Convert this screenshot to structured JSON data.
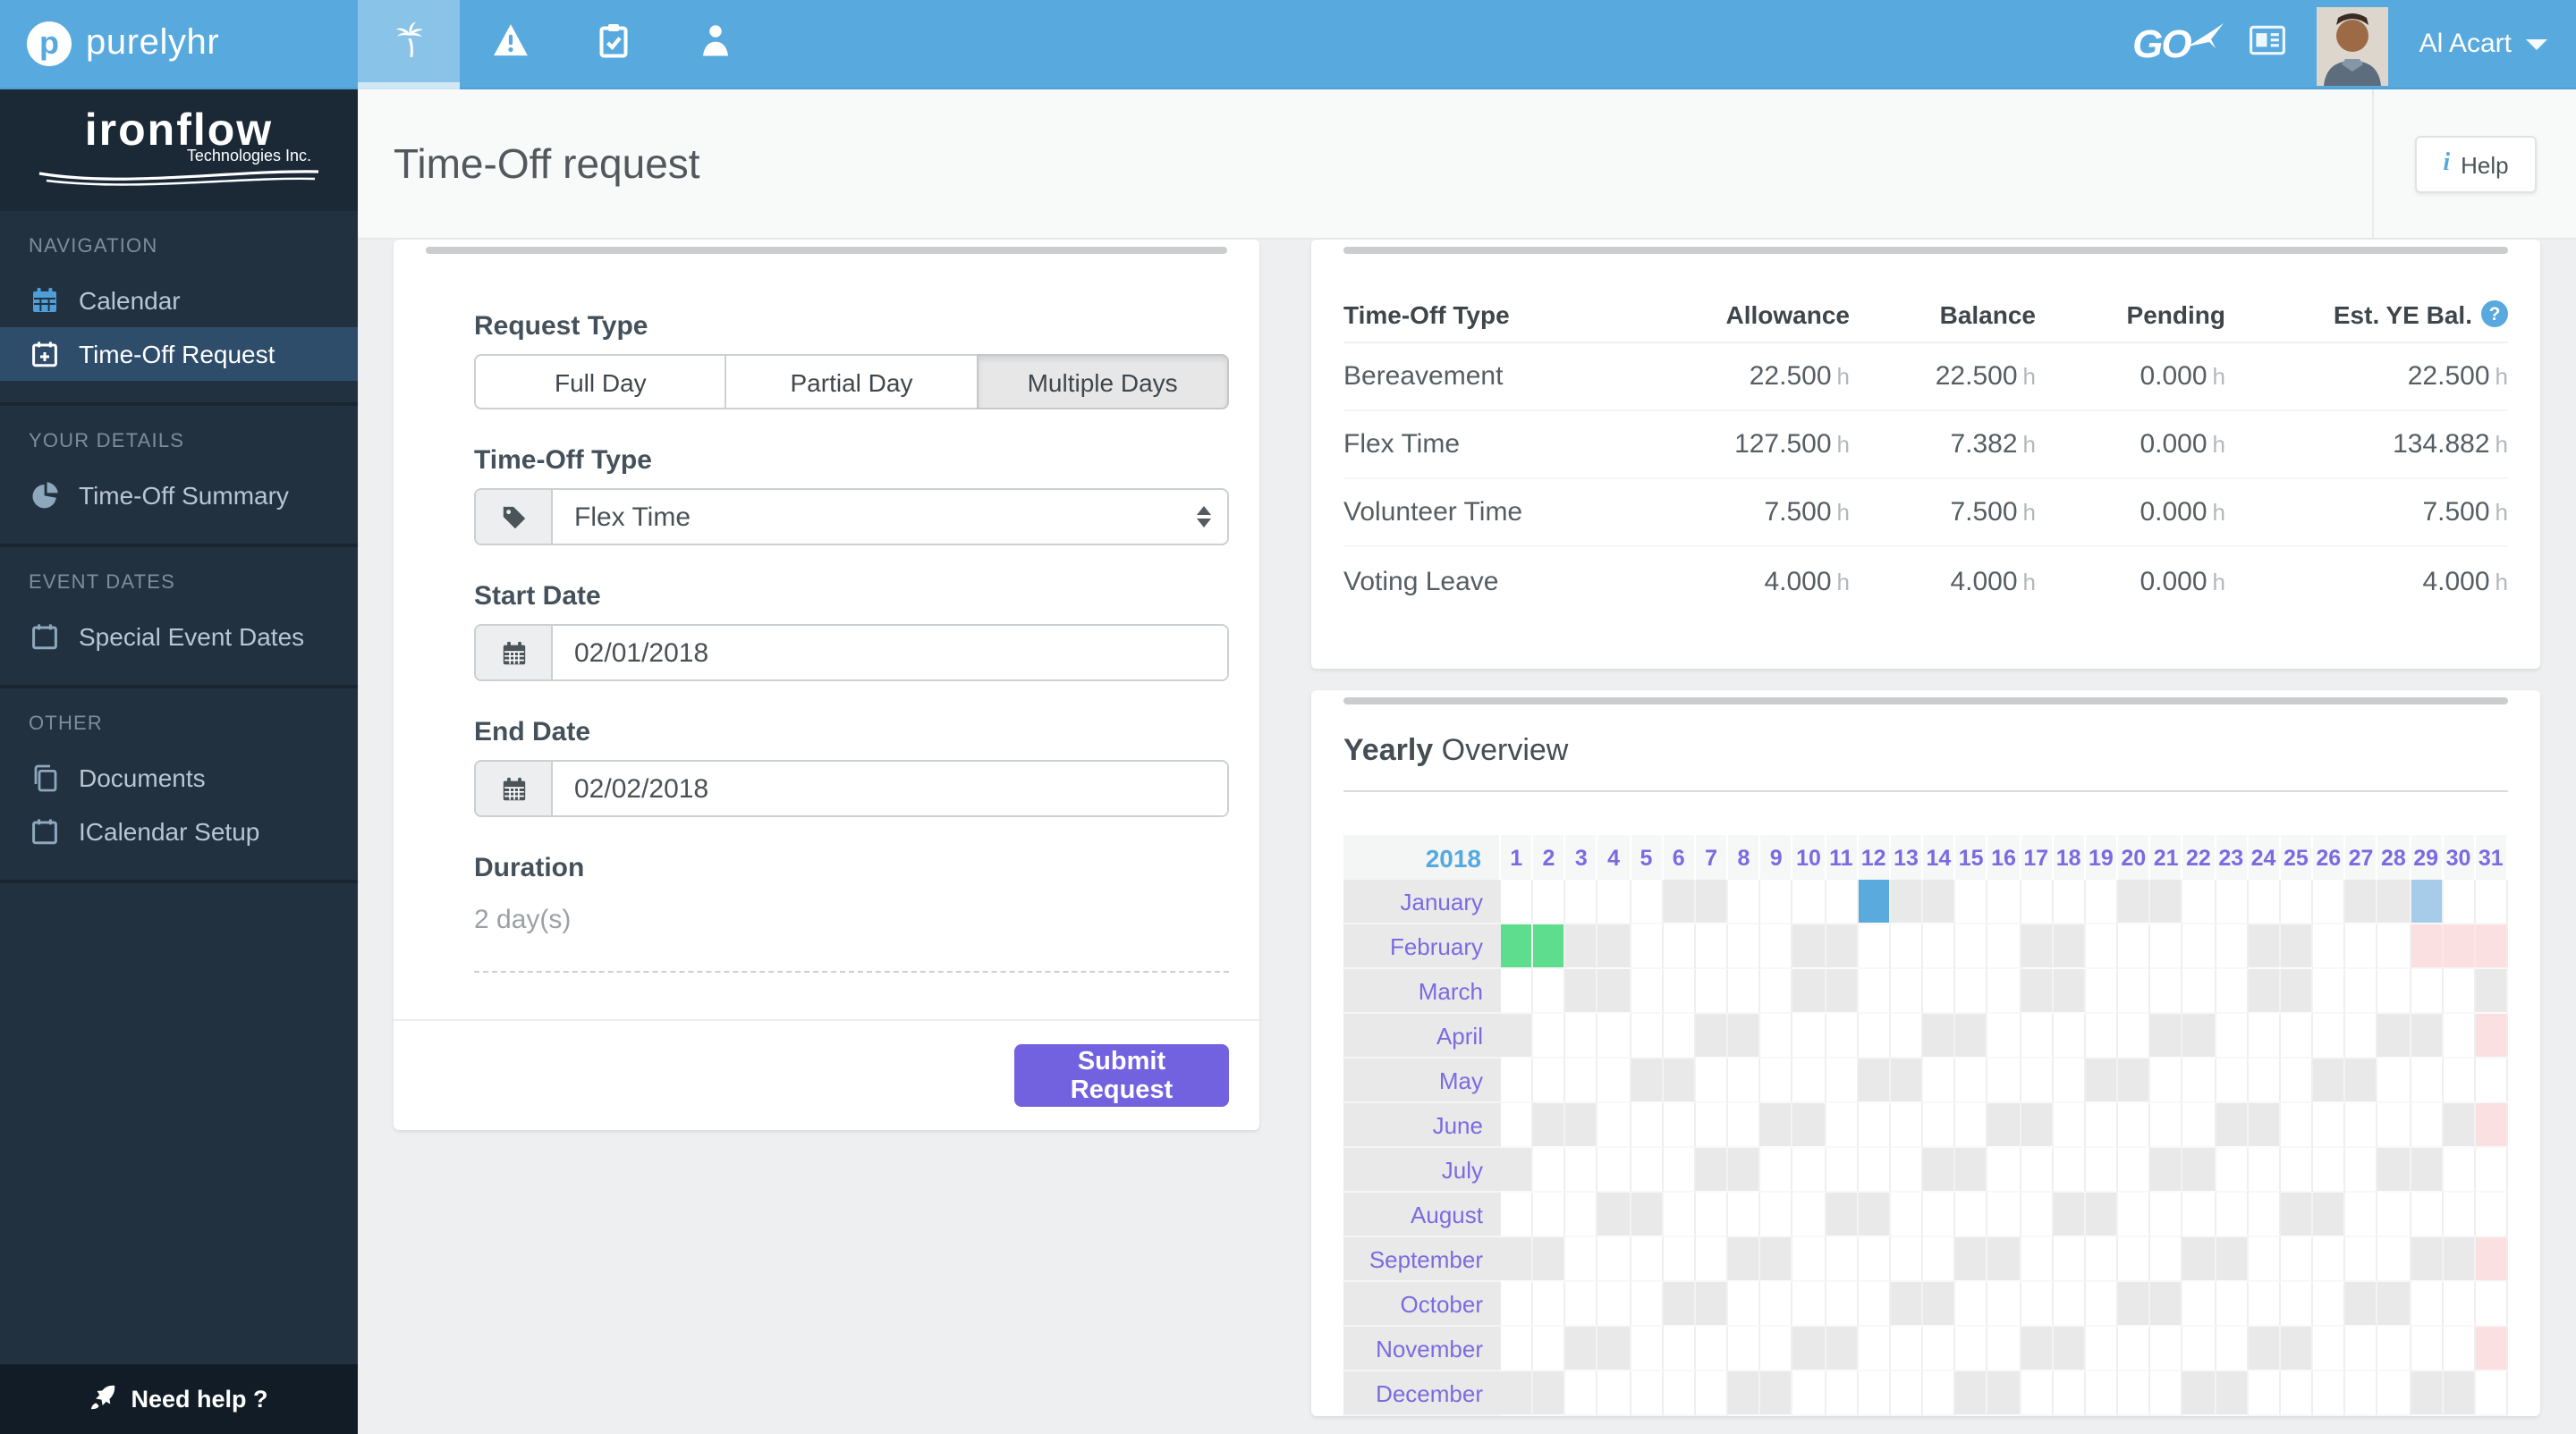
{
  "topbar": {
    "brand": "purelyhr",
    "go_label": "GO",
    "user_name": "Al Acart"
  },
  "sidebar": {
    "company_name": "ironflow",
    "company_subtitle": "Technologies Inc.",
    "sections": [
      {
        "title": "NAVIGATION",
        "items": [
          {
            "label": "Calendar"
          },
          {
            "label": "Time-Off Request"
          }
        ]
      },
      {
        "title": "YOUR DETAILS",
        "items": [
          {
            "label": "Time-Off Summary"
          }
        ]
      },
      {
        "title": "EVENT DATES",
        "items": [
          {
            "label": "Special Event Dates"
          }
        ]
      },
      {
        "title": "OTHER",
        "items": [
          {
            "label": "Documents"
          },
          {
            "label": "ICalendar Setup"
          }
        ]
      }
    ],
    "need_help": "Need help ?"
  },
  "header": {
    "title": "Time-Off request",
    "help_label": "Help"
  },
  "form": {
    "request_type_label": "Request Type",
    "request_types": [
      "Full Day",
      "Partial Day",
      "Multiple Days"
    ],
    "request_type_selected": "Multiple Days",
    "time_off_type_label": "Time-Off Type",
    "time_off_type_value": "Flex Time",
    "start_date_label": "Start Date",
    "start_date_value": "02/01/2018",
    "end_date_label": "End Date",
    "end_date_value": "02/02/2018",
    "duration_label": "Duration",
    "duration_value": "2 day(s)",
    "submit_label": "Submit Request"
  },
  "balances": {
    "columns": [
      "Time-Off Type",
      "Allowance",
      "Balance",
      "Pending",
      "Est. YE Bal."
    ],
    "unit": "h",
    "rows": [
      {
        "type": "Bereavement",
        "allowance": "22.500",
        "balance": "22.500",
        "pending": "0.000",
        "est_ye": "22.500"
      },
      {
        "type": "Flex Time",
        "allowance": "127.500",
        "balance": "7.382",
        "pending": "0.000",
        "est_ye": "134.882"
      },
      {
        "type": "Volunteer Time",
        "allowance": "7.500",
        "balance": "7.500",
        "pending": "0.000",
        "est_ye": "7.500"
      },
      {
        "type": "Voting Leave",
        "allowance": "4.000",
        "balance": "4.000",
        "pending": "0.000",
        "est_ye": "4.000"
      }
    ]
  },
  "yearly_overview": {
    "title_bold": "Yearly",
    "title_rest": " Overview",
    "year": "2018",
    "day_count": 31,
    "cell_colors": {
      "weekend": "#e9e9e9",
      "invalid": "#fbe0e1",
      "blue": "#5aaade",
      "lightblue": "#a7cce9",
      "green": "#5fdd8e"
    },
    "months": [
      {
        "name": "January",
        "weekends": [
          6,
          7,
          13,
          14,
          20,
          21,
          27,
          28
        ],
        "invalid": [],
        "marked": {
          "12": "blue",
          "29": "lightblue"
        }
      },
      {
        "name": "February",
        "weekends": [
          3,
          4,
          10,
          11,
          17,
          18,
          24,
          25
        ],
        "invalid": [
          29,
          30,
          31
        ],
        "marked": {
          "1": "green",
          "2": "green"
        }
      },
      {
        "name": "March",
        "weekends": [
          3,
          4,
          10,
          11,
          17,
          18,
          24,
          25,
          31
        ],
        "invalid": [],
        "marked": {}
      },
      {
        "name": "April",
        "weekends": [
          1,
          7,
          8,
          14,
          15,
          21,
          22,
          28,
          29
        ],
        "invalid": [
          31
        ],
        "marked": {}
      },
      {
        "name": "May",
        "weekends": [
          5,
          6,
          12,
          13,
          19,
          20,
          26,
          27
        ],
        "invalid": [],
        "marked": {}
      },
      {
        "name": "June",
        "weekends": [
          2,
          3,
          9,
          10,
          16,
          17,
          23,
          24,
          30
        ],
        "invalid": [
          31
        ],
        "marked": {}
      },
      {
        "name": "July",
        "weekends": [
          1,
          7,
          8,
          14,
          15,
          21,
          22,
          28,
          29
        ],
        "invalid": [],
        "marked": {}
      },
      {
        "name": "August",
        "weekends": [
          4,
          5,
          11,
          12,
          18,
          19,
          25,
          26
        ],
        "invalid": [],
        "marked": {}
      },
      {
        "name": "September",
        "weekends": [
          1,
          2,
          8,
          9,
          15,
          16,
          22,
          23,
          29,
          30
        ],
        "invalid": [
          31
        ],
        "marked": {}
      },
      {
        "name": "October",
        "weekends": [
          6,
          7,
          13,
          14,
          20,
          21,
          27,
          28
        ],
        "invalid": [],
        "marked": {}
      },
      {
        "name": "November",
        "weekends": [
          3,
          4,
          10,
          11,
          17,
          18,
          24,
          25
        ],
        "invalid": [
          31
        ],
        "marked": {}
      },
      {
        "name": "December",
        "weekends": [
          1,
          2,
          8,
          9,
          15,
          16,
          22,
          23,
          29,
          30
        ],
        "invalid": [],
        "marked": {}
      }
    ]
  }
}
